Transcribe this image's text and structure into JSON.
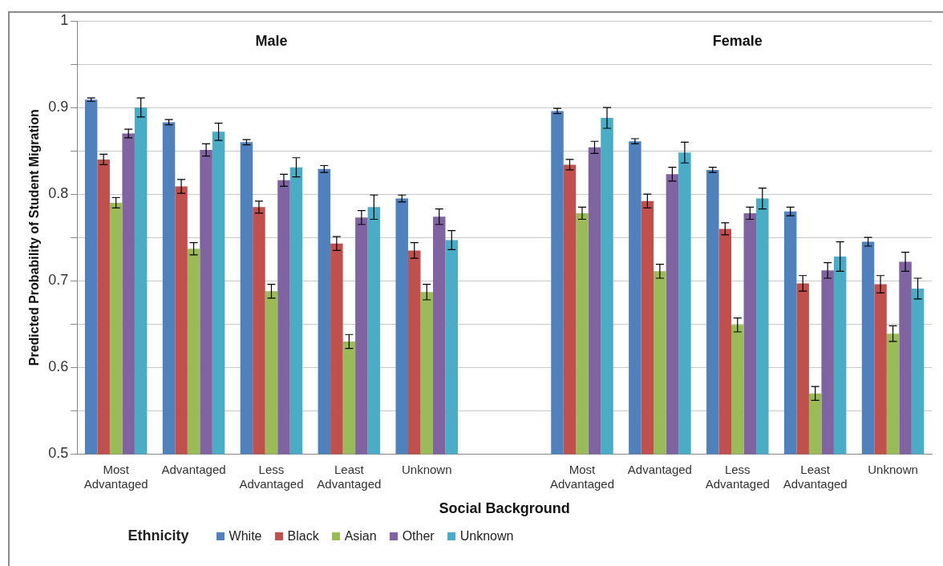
{
  "chart_data": {
    "type": "bar",
    "xlabel": "Social Background",
    "ylabel": "Predicted Probability of Student Migration",
    "legend_title": "Ethnicity",
    "legend": "bottom",
    "grid": "y",
    "annotations": [
      "Male",
      "Female"
    ],
    "categories": [
      "Most Advantaged",
      "Advantaged",
      "Less Advantaged",
      "Least Advantaged",
      "Unknown",
      null,
      "Most Advantaged",
      "Advantaged",
      "Less Advantaged",
      "Least Advantaged",
      "Unknown"
    ],
    "ylim": [
      0.5,
      1
    ],
    "yticks": [
      0.5,
      {
        "value": 0.55,
        "label": null
      },
      0.6,
      {
        "value": 0.65,
        "label": null
      },
      0.7,
      {
        "value": 0.75,
        "label": null
      },
      0.8,
      {
        "value": 0.85,
        "label": null
      },
      0.9,
      {
        "value": 0.95,
        "label": null
      },
      1
    ],
    "series": [
      {
        "name": "White",
        "color": "#4f81bd",
        "values": [
          0.909,
          0.883,
          0.86,
          0.829,
          0.795,
          null,
          0.896,
          0.861,
          0.828,
          0.78,
          0.745
        ],
        "errors": [
          0.002,
          0.003,
          0.003,
          0.004,
          0.004,
          null,
          0.003,
          0.003,
          0.003,
          0.005,
          0.005
        ]
      },
      {
        "name": "Black",
        "color": "#c0504d",
        "values": [
          0.84,
          0.809,
          0.785,
          0.743,
          0.735,
          null,
          0.834,
          0.792,
          0.76,
          0.697,
          0.696
        ],
        "errors": [
          0.006,
          0.008,
          0.007,
          0.008,
          0.009,
          null,
          0.006,
          0.008,
          0.007,
          0.009,
          0.01
        ]
      },
      {
        "name": "Asian",
        "color": "#9bbb59",
        "values": [
          0.79,
          0.737,
          0.688,
          0.63,
          0.687,
          null,
          0.778,
          0.711,
          0.649,
          0.57,
          0.639
        ],
        "errors": [
          0.006,
          0.007,
          0.008,
          0.008,
          0.009,
          null,
          0.007,
          0.008,
          0.008,
          0.008,
          0.009
        ]
      },
      {
        "name": "Other",
        "color": "#8064a2",
        "values": [
          0.87,
          0.851,
          0.816,
          0.773,
          0.774,
          null,
          0.854,
          0.823,
          0.778,
          0.712,
          0.722
        ],
        "errors": [
          0.005,
          0.007,
          0.007,
          0.008,
          0.009,
          null,
          0.007,
          0.008,
          0.007,
          0.009,
          0.011
        ]
      },
      {
        "name": "Unknown",
        "color": "#4bacc6",
        "values": [
          0.9,
          0.872,
          0.831,
          0.785,
          0.747,
          null,
          0.888,
          0.848,
          0.795,
          0.728,
          0.691
        ],
        "errors": [
          0.011,
          0.01,
          0.011,
          0.014,
          0.011,
          null,
          0.012,
          0.012,
          0.012,
          0.017,
          0.012
        ]
      }
    ]
  }
}
